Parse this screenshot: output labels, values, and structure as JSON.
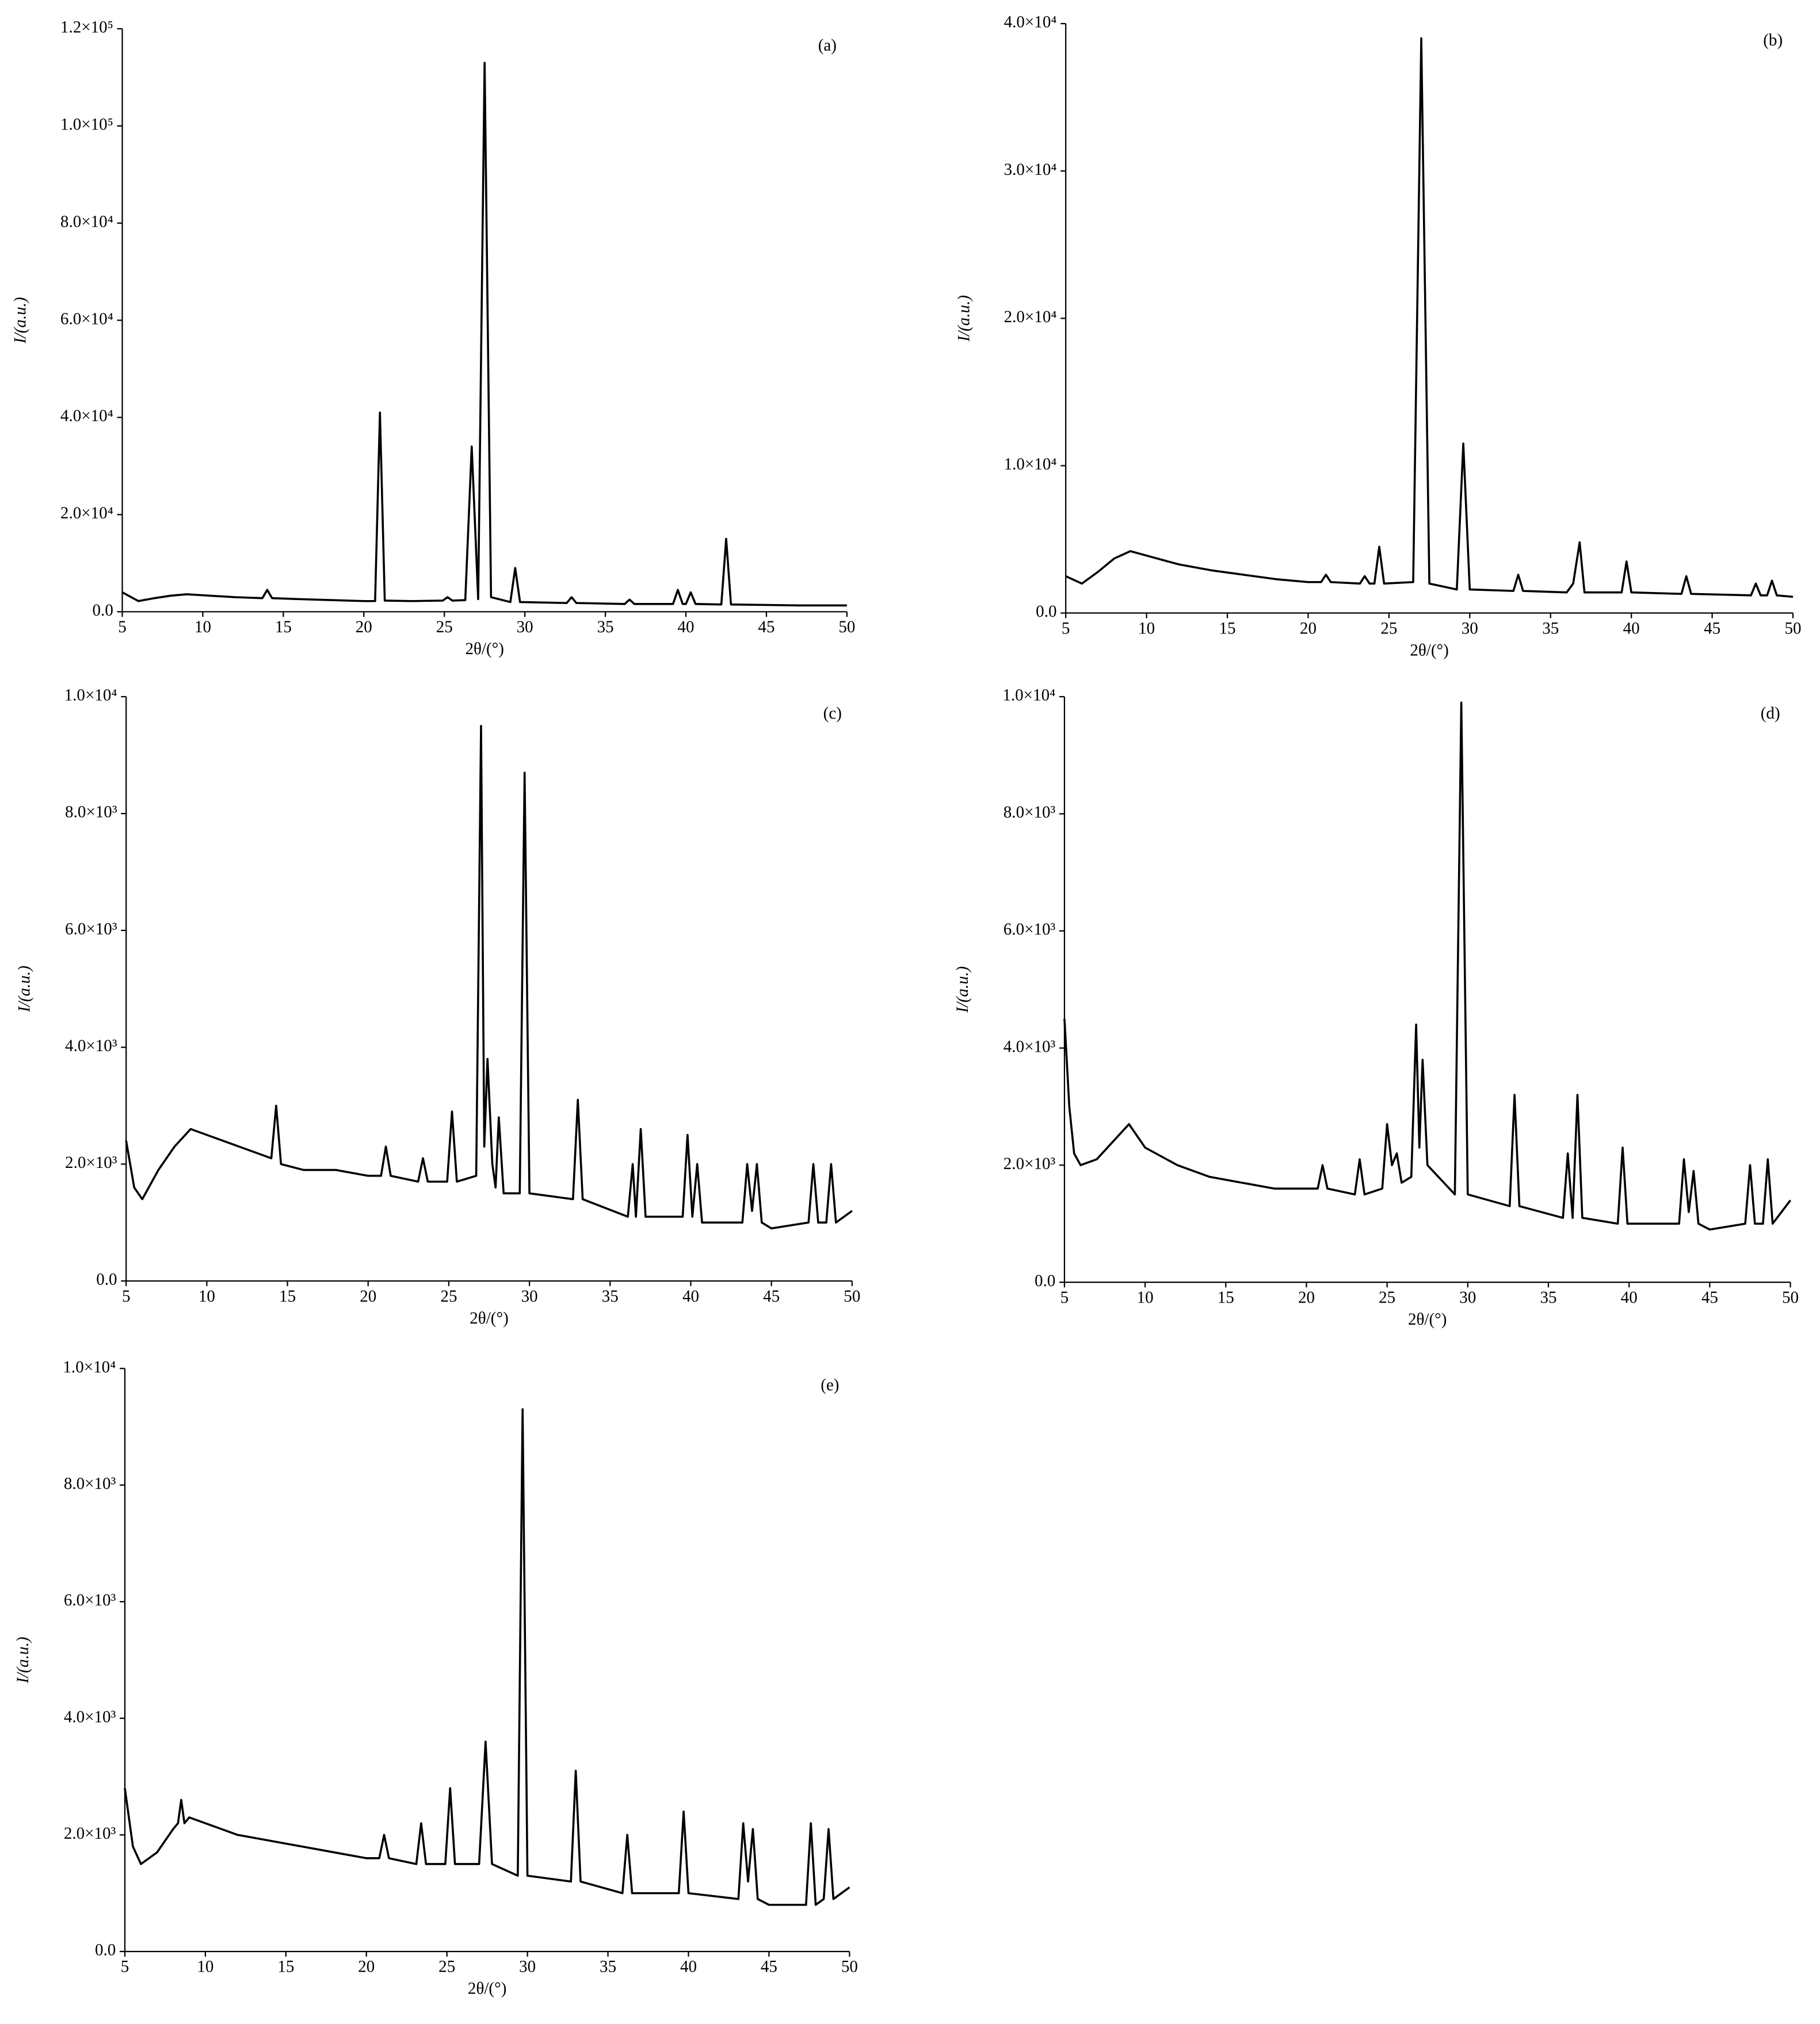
{
  "chart_data": [
    {
      "type": "line",
      "label": "(a)",
      "xlabel": "2θ/(°)",
      "ylabel": "I/(a.u.)",
      "color": "#000000",
      "xlim": [
        5,
        50
      ],
      "xticks": [
        5,
        10,
        15,
        20,
        25,
        30,
        35,
        40,
        45,
        50
      ],
      "ylim": [
        0,
        120000
      ],
      "yticks": [
        {
          "value": 0,
          "label": "0.0"
        },
        {
          "value": 20000,
          "label": "2.0×10⁴"
        },
        {
          "value": 40000,
          "label": "4.0×10⁴"
        },
        {
          "value": 60000,
          "label": "6.0×10⁴"
        },
        {
          "value": 80000,
          "label": "8.0×10⁴"
        },
        {
          "value": 100000,
          "label": "1.0×10⁵"
        },
        {
          "value": 120000,
          "label": "1.2×10⁵"
        }
      ],
      "x": [
        5,
        6,
        7,
        8,
        9,
        10,
        12,
        13.7,
        14,
        14.3,
        16,
        18,
        20,
        20.7,
        21,
        21.3,
        23,
        24.9,
        25.2,
        25.5,
        26.3,
        26.7,
        27.1,
        27.5,
        27.9,
        29.1,
        29.4,
        29.7,
        32.6,
        32.9,
        33.2,
        36.2,
        36.5,
        36.8,
        39.2,
        39.5,
        39.8,
        40,
        40.3,
        40.6,
        42.2,
        42.5,
        42.8,
        45,
        47,
        50
      ],
      "values": [
        4000,
        2200,
        2800,
        3300,
        3600,
        3400,
        3000,
        2800,
        4500,
        2800,
        2600,
        2400,
        2200,
        2200,
        41000,
        2300,
        2200,
        2300,
        3000,
        2300,
        2400,
        34000,
        2600,
        113000,
        3000,
        2000,
        9000,
        2000,
        1800,
        3000,
        1800,
        1600,
        2500,
        1600,
        1600,
        4500,
        1600,
        1600,
        4000,
        1600,
        1500,
        15000,
        1500,
        1400,
        1300,
        1300
      ]
    },
    {
      "type": "line",
      "label": "(b)",
      "xlabel": "2θ/(°)",
      "ylabel": "I/(a.u.)",
      "color": "#000000",
      "xlim": [
        5,
        50
      ],
      "xticks": [
        5,
        10,
        15,
        20,
        25,
        30,
        35,
        40,
        45,
        50
      ],
      "ylim": [
        0,
        40000
      ],
      "yticks": [
        {
          "value": 0,
          "label": "0.0"
        },
        {
          "value": 10000,
          "label": "1.0×10⁴"
        },
        {
          "value": 20000,
          "label": "2.0×10⁴"
        },
        {
          "value": 30000,
          "label": "3.0×10⁴"
        },
        {
          "value": 40000,
          "label": "4.0×10⁴"
        }
      ],
      "x": [
        5,
        6,
        7,
        8,
        9,
        10,
        11,
        12,
        14,
        16,
        18,
        20,
        20.8,
        21.1,
        21.4,
        23.2,
        23.5,
        23.8,
        24.1,
        24.4,
        24.7,
        26.5,
        27.0,
        27.5,
        29.2,
        29.6,
        30.0,
        32.7,
        33.0,
        33.3,
        36.0,
        36.4,
        36.8,
        37.1,
        39.4,
        39.7,
        40.0,
        43.1,
        43.4,
        43.7,
        47.4,
        47.7,
        48.0,
        48.4,
        48.7,
        49.0,
        50
      ],
      "values": [
        2500,
        2000,
        2800,
        3700,
        4200,
        3900,
        3600,
        3300,
        2900,
        2600,
        2300,
        2100,
        2100,
        2600,
        2100,
        2000,
        2500,
        2000,
        2000,
        4500,
        2000,
        2100,
        39000,
        2000,
        1600,
        11500,
        1600,
        1500,
        2600,
        1500,
        1400,
        2000,
        4800,
        1400,
        1400,
        3500,
        1400,
        1300,
        2500,
        1300,
        1200,
        2000,
        1200,
        1200,
        2200,
        1200,
        1100
      ]
    },
    {
      "type": "line",
      "label": "(c)",
      "xlabel": "2θ/(°)",
      "ylabel": "I/(a.u.)",
      "color": "#000000",
      "xlim": [
        5,
        50
      ],
      "xticks": [
        5,
        10,
        15,
        20,
        25,
        30,
        35,
        40,
        45,
        50
      ],
      "ylim": [
        0,
        10000
      ],
      "yticks": [
        {
          "value": 0,
          "label": "0.0"
        },
        {
          "value": 2000,
          "label": "2.0×10³"
        },
        {
          "value": 4000,
          "label": "4.0×10³"
        },
        {
          "value": 6000,
          "label": "6.0×10³"
        },
        {
          "value": 8000,
          "label": "8.0×10³"
        },
        {
          "value": 10000,
          "label": "1.0×10⁴"
        }
      ],
      "x": [
        5,
        5.5,
        6,
        7,
        8,
        9,
        10,
        12,
        14,
        14.3,
        14.6,
        16,
        18,
        20,
        20.8,
        21.1,
        21.4,
        23.1,
        23.4,
        23.7,
        24.9,
        25.2,
        25.5,
        26.7,
        27.0,
        27.2,
        27.4,
        27.7,
        27.9,
        28.1,
        28.4,
        29.4,
        29.7,
        30.0,
        32.7,
        33.0,
        33.3,
        36.1,
        36.4,
        36.6,
        36.9,
        37.2,
        39.5,
        39.8,
        40.1,
        40.4,
        40.7,
        43.2,
        43.5,
        43.8,
        44.1,
        44.4,
        45,
        47.3,
        47.6,
        47.9,
        48.4,
        48.7,
        49,
        50
      ],
      "values": [
        2400,
        1600,
        1400,
        1900,
        2300,
        2600,
        2500,
        2300,
        2100,
        3000,
        2000,
        1900,
        1900,
        1800,
        1800,
        2300,
        1800,
        1700,
        2100,
        1700,
        1700,
        2900,
        1700,
        1800,
        9500,
        2300,
        3800,
        2000,
        1600,
        2800,
        1500,
        1500,
        8700,
        1500,
        1400,
        3100,
        1400,
        1100,
        2000,
        1100,
        2600,
        1100,
        1100,
        2500,
        1100,
        2000,
        1000,
        1000,
        2000,
        1200,
        2000,
        1000,
        900,
        1000,
        2000,
        1000,
        1000,
        2000,
        1000,
        1200
      ]
    },
    {
      "type": "line",
      "label": "(d)",
      "xlabel": "2θ/(°)",
      "ylabel": "I/(a.u.)",
      "color": "#000000",
      "xlim": [
        5,
        50
      ],
      "xticks": [
        5,
        10,
        15,
        20,
        25,
        30,
        35,
        40,
        45,
        50
      ],
      "ylim": [
        0,
        10000
      ],
      "yticks": [
        {
          "value": 0,
          "label": "0.0"
        },
        {
          "value": 2000,
          "label": "2.0×10³"
        },
        {
          "value": 4000,
          "label": "4.0×10³"
        },
        {
          "value": 6000,
          "label": "6.0×10³"
        },
        {
          "value": 8000,
          "label": "8.0×10³"
        },
        {
          "value": 10000,
          "label": "1.0×10⁴"
        }
      ],
      "x": [
        5,
        5.3,
        5.6,
        6,
        7,
        8,
        9,
        10,
        12,
        14,
        16,
        18,
        20,
        20.7,
        21.0,
        21.3,
        23.0,
        23.3,
        23.6,
        24.7,
        25.0,
        25.3,
        25.6,
        25.9,
        26.5,
        26.8,
        27.0,
        27.2,
        27.5,
        29.2,
        29.6,
        30.0,
        32.6,
        32.9,
        33.2,
        35.9,
        36.2,
        36.5,
        36.8,
        37.1,
        39.3,
        39.6,
        39.9,
        43.1,
        43.4,
        43.7,
        44.0,
        44.3,
        45,
        47.2,
        47.5,
        47.8,
        48.3,
        48.6,
        48.9,
        50
      ],
      "values": [
        4500,
        3000,
        2200,
        2000,
        2100,
        2400,
        2700,
        2300,
        2000,
        1800,
        1700,
        1600,
        1600,
        1600,
        2000,
        1600,
        1500,
        2100,
        1500,
        1600,
        2700,
        2000,
        2200,
        1700,
        1800,
        4400,
        2300,
        3800,
        2000,
        1500,
        9900,
        1500,
        1300,
        3200,
        1300,
        1100,
        2200,
        1100,
        3200,
        1100,
        1000,
        2300,
        1000,
        1000,
        2100,
        1200,
        1900,
        1000,
        900,
        1000,
        2000,
        1000,
        1000,
        2100,
        1000,
        1400
      ]
    },
    {
      "type": "line",
      "label": "(e)",
      "xlabel": "2θ/(°)",
      "ylabel": "I/(a.u.)",
      "color": "#000000",
      "xlim": [
        5,
        50
      ],
      "xticks": [
        5,
        10,
        15,
        20,
        25,
        30,
        35,
        40,
        45,
        50
      ],
      "ylim": [
        0,
        10000
      ],
      "yticks": [
        {
          "value": 0,
          "label": "0.0"
        },
        {
          "value": 2000,
          "label": "2.0×10³"
        },
        {
          "value": 4000,
          "label": "4.0×10³"
        },
        {
          "value": 6000,
          "label": "6.0×10³"
        },
        {
          "value": 8000,
          "label": "8.0×10³"
        },
        {
          "value": 10000,
          "label": "1.0×10⁴"
        }
      ],
      "x": [
        5,
        5.5,
        6,
        7,
        8,
        8.3,
        8.5,
        8.7,
        9,
        10,
        12,
        14,
        16,
        18,
        20,
        20.8,
        21.1,
        21.4,
        23.1,
        23.4,
        23.7,
        24.9,
        25.2,
        25.5,
        27.0,
        27.4,
        27.8,
        29.4,
        29.7,
        30.0,
        32.7,
        33.0,
        33.3,
        35.9,
        36.2,
        36.5,
        39.4,
        39.7,
        40.0,
        43.1,
        43.4,
        43.7,
        44.0,
        44.3,
        45,
        47.3,
        47.6,
        47.9,
        48.4,
        48.7,
        49,
        50
      ],
      "values": [
        2800,
        1800,
        1500,
        1700,
        2100,
        2200,
        2600,
        2200,
        2300,
        2200,
        2000,
        1900,
        1800,
        1700,
        1600,
        1600,
        2000,
        1600,
        1500,
        2200,
        1500,
        1500,
        2800,
        1500,
        1500,
        3600,
        1500,
        1300,
        9300,
        1300,
        1200,
        3100,
        1200,
        1000,
        2000,
        1000,
        1000,
        2400,
        1000,
        900,
        2200,
        1200,
        2100,
        900,
        800,
        800,
        2200,
        800,
        900,
        2100,
        900,
        1100
      ]
    }
  ]
}
